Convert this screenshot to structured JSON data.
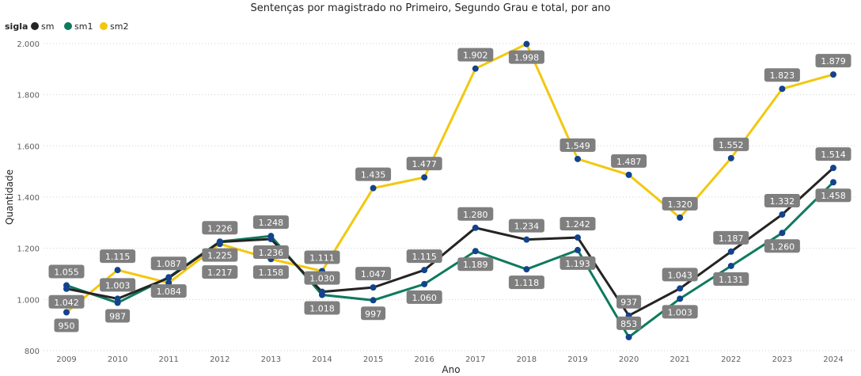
{
  "chart_data": {
    "type": "line",
    "title": "Sentenças por magistrado no Primeiro, Segundo Grau e total, por ano",
    "xlabel": "Ano",
    "ylabel": "Quantidade",
    "legend_title": "sigla",
    "legend_position": "top-left",
    "x": [
      "2009",
      "2010",
      "2011",
      "2012",
      "2013",
      "2014",
      "2015",
      "2016",
      "2017",
      "2018",
      "2019",
      "2020",
      "2021",
      "2022",
      "2023",
      "2024"
    ],
    "ylim": [
      800,
      2000
    ],
    "yticks": [
      800,
      1000,
      1200,
      1400,
      1600,
      1800,
      2000
    ],
    "ytick_labels": [
      "800",
      "1.000",
      "1.200",
      "1.400",
      "1.600",
      "1.800",
      "2.000"
    ],
    "grid": true,
    "series": [
      {
        "name": "sm",
        "color": "#252423",
        "values": [
          1042,
          1003,
          1084,
          1225,
          1236,
          1030,
          1047,
          1115,
          1280,
          1234,
          1242,
          937,
          1043,
          1187,
          1332,
          1514
        ],
        "labels": [
          "1.042",
          "1.003",
          "1.084",
          "1.225",
          "1.236",
          "1.030",
          "1.047",
          "1.115",
          "1.280",
          "1.234",
          "1.242",
          "937",
          "1.043",
          "1.187",
          "1.332",
          "1.514"
        ]
      },
      {
        "name": "sm1",
        "color": "#0e7a5e",
        "values": [
          1055,
          987,
          1087,
          1226,
          1248,
          1018,
          997,
          1060,
          1189,
          1118,
          1193,
          853,
          1003,
          1131,
          1260,
          1458
        ],
        "labels": [
          "1.055",
          "987",
          "1.087",
          "1.226",
          "1.248",
          "1.018",
          "997",
          "1.060",
          "1.189",
          "1.118",
          "1.193",
          "853",
          "1.003",
          "1.131",
          "1.260",
          "1.458"
        ]
      },
      {
        "name": "sm2",
        "color": "#f2c80f",
        "values": [
          950,
          1115,
          1065,
          1217,
          1158,
          1111,
          1435,
          1477,
          1902,
          1998,
          1549,
          1487,
          1320,
          1552,
          1823,
          1879
        ],
        "labels": [
          "950",
          "1.115",
          null,
          "1.217",
          "1.158",
          "1.111",
          "1.435",
          "1.477",
          "1.902",
          "1.998",
          "1.549",
          "1.487",
          "1.320",
          "1.552",
          "1.823",
          "1.879"
        ]
      }
    ]
  }
}
